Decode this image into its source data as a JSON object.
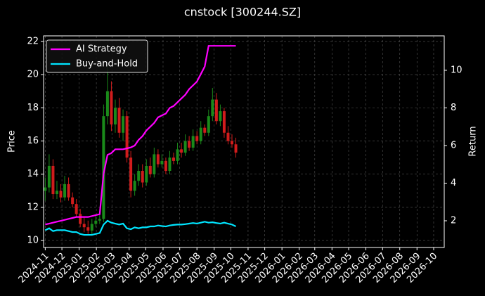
{
  "chart_data": {
    "type": "candlestick",
    "title": "cnstock [300244.SZ]",
    "ylabel": "Price",
    "y2label": "Return",
    "x": [
      "2024-11-01",
      "2024-11-08",
      "2024-11-15",
      "2024-11-22",
      "2024-11-29",
      "2024-12-06",
      "2024-12-13",
      "2024-12-20",
      "2024-12-27",
      "2025-01-03",
      "2025-01-10",
      "2025-01-17",
      "2025-01-24",
      "2025-01-31",
      "2025-02-07",
      "2025-02-14",
      "2025-02-21",
      "2025-02-28",
      "2025-03-07",
      "2025-03-14",
      "2025-03-21",
      "2025-03-28",
      "2025-04-04",
      "2025-04-11",
      "2025-04-18",
      "2025-04-25",
      "2025-05-02",
      "2025-05-09",
      "2025-05-16",
      "2025-05-23",
      "2025-05-30",
      "2025-06-06",
      "2025-06-13",
      "2025-06-20",
      "2025-06-27",
      "2025-07-04",
      "2025-07-11",
      "2025-07-18",
      "2025-07-25",
      "2025-08-01",
      "2025-08-08",
      "2025-08-15",
      "2025-08-22",
      "2025-08-29",
      "2025-09-05",
      "2025-09-12",
      "2025-09-19",
      "2025-09-26",
      "2025-10-03",
      "2025-10-10"
    ],
    "open": [
      13.0,
      13.2,
      14.5,
      12.8,
      13.0,
      12.6,
      13.4,
      12.6,
      12.2,
      11.6,
      11.0,
      10.8,
      10.6,
      11.0,
      11.2,
      11.3,
      17.5,
      19.0,
      17.0,
      18.0,
      16.5,
      17.5,
      15.0,
      13.0,
      13.6,
      14.2,
      13.5,
      14.5,
      14.0,
      15.2,
      14.6,
      14.8,
      14.2,
      15.0,
      14.8,
      15.5,
      15.3,
      16.0,
      15.6,
      16.3,
      16.0,
      16.8,
      16.5,
      17.5,
      18.5,
      17.2,
      17.8,
      16.5,
      16.0,
      15.8
    ],
    "high": [
      13.8,
      15.2,
      14.9,
      13.6,
      13.4,
      13.9,
      13.8,
      12.9,
      12.5,
      11.9,
      11.4,
      11.2,
      11.3,
      11.5,
      11.6,
      18.2,
      20.5,
      19.6,
      18.5,
      18.6,
      17.9,
      17.8,
      15.4,
      14.0,
      14.6,
      14.6,
      14.9,
      15.0,
      15.6,
      15.5,
      15.2,
      15.0,
      15.4,
      15.3,
      15.9,
      15.9,
      16.4,
      16.3,
      16.7,
      16.6,
      17.2,
      17.0,
      17.9,
      19.2,
      18.9,
      18.2,
      18.0,
      16.9,
      16.4,
      16.2
    ],
    "low": [
      12.4,
      12.9,
      12.5,
      12.5,
      12.3,
      12.4,
      12.4,
      12.0,
      11.4,
      10.8,
      10.5,
      10.4,
      10.3,
      10.8,
      11.0,
      11.1,
      17.0,
      16.6,
      16.5,
      16.2,
      16.0,
      14.7,
      12.6,
      12.7,
      13.3,
      13.2,
      13.3,
      13.8,
      13.8,
      14.4,
      14.4,
      14.0,
      14.0,
      14.6,
      14.6,
      15.0,
      15.1,
      15.4,
      15.4,
      15.8,
      15.8,
      16.3,
      16.3,
      17.2,
      17.0,
      16.9,
      16.2,
      15.8,
      15.6,
      15.0
    ],
    "close": [
      13.2,
      14.5,
      12.8,
      13.0,
      12.6,
      13.4,
      12.6,
      12.2,
      11.6,
      11.0,
      10.8,
      10.6,
      11.0,
      11.2,
      11.3,
      17.5,
      19.0,
      17.0,
      18.0,
      16.5,
      17.5,
      15.0,
      13.0,
      13.6,
      14.2,
      13.5,
      14.5,
      14.0,
      15.2,
      14.6,
      14.8,
      14.2,
      15.0,
      14.8,
      15.5,
      15.3,
      16.0,
      15.6,
      16.3,
      16.0,
      16.8,
      16.5,
      17.5,
      18.5,
      17.2,
      17.8,
      16.5,
      16.0,
      15.8,
      15.3
    ],
    "up_color": "#1a8a1a",
    "down_color": "#d01c1c",
    "series": [
      {
        "name": "AI Strategy",
        "color": "#ff00ff",
        "axis": "y2",
        "values": [
          1.8,
          1.85,
          1.9,
          1.95,
          2.0,
          2.05,
          2.1,
          2.15,
          2.2,
          2.2,
          2.2,
          2.2,
          2.25,
          2.3,
          2.35,
          4.5,
          5.5,
          5.6,
          5.8,
          5.8,
          5.8,
          5.85,
          5.9,
          6.0,
          6.3,
          6.5,
          6.8,
          7.0,
          7.2,
          7.5,
          7.6,
          7.7,
          8.0,
          8.1,
          8.3,
          8.5,
          8.7,
          9.0,
          9.2,
          9.4,
          9.8,
          10.2,
          11.3,
          11.3,
          11.3,
          11.3,
          11.3,
          11.3,
          11.3,
          11.3
        ]
      },
      {
        "name": "Buy-and-Hold",
        "color": "#00e5ff",
        "axis": "y2",
        "values": [
          1.5,
          1.6,
          1.45,
          1.5,
          1.5,
          1.5,
          1.45,
          1.4,
          1.4,
          1.3,
          1.25,
          1.25,
          1.25,
          1.3,
          1.35,
          1.8,
          2.0,
          1.9,
          1.85,
          1.8,
          1.85,
          1.6,
          1.55,
          1.65,
          1.6,
          1.65,
          1.65,
          1.7,
          1.7,
          1.75,
          1.72,
          1.7,
          1.75,
          1.78,
          1.8,
          1.8,
          1.82,
          1.85,
          1.88,
          1.85,
          1.9,
          1.95,
          1.9,
          1.92,
          1.88,
          1.85,
          1.9,
          1.85,
          1.8,
          1.7
        ]
      }
    ],
    "xlim": [
      "2024-10-29",
      "2026-10-20"
    ],
    "xticks": [
      "2024-11",
      "2024-12",
      "2025-01",
      "2025-02",
      "2025-03",
      "2025-04",
      "2025-05",
      "2025-06",
      "2025-07",
      "2025-08",
      "2025-09",
      "2025-10",
      "2025-11",
      "2025-12",
      "2026-01",
      "2026-02",
      "2026-03",
      "2026-04",
      "2026-05",
      "2026-06",
      "2026-07",
      "2026-08",
      "2026-09",
      "2026-10"
    ],
    "ylim": [
      9.58,
      22.34
    ],
    "yticks": [
      10,
      12,
      14,
      16,
      18,
      20,
      22
    ],
    "y2lim": [
      0.58,
      11.83
    ],
    "y2ticks": [
      2,
      4,
      6,
      8,
      10
    ],
    "grid": true,
    "legend": "upper left"
  }
}
